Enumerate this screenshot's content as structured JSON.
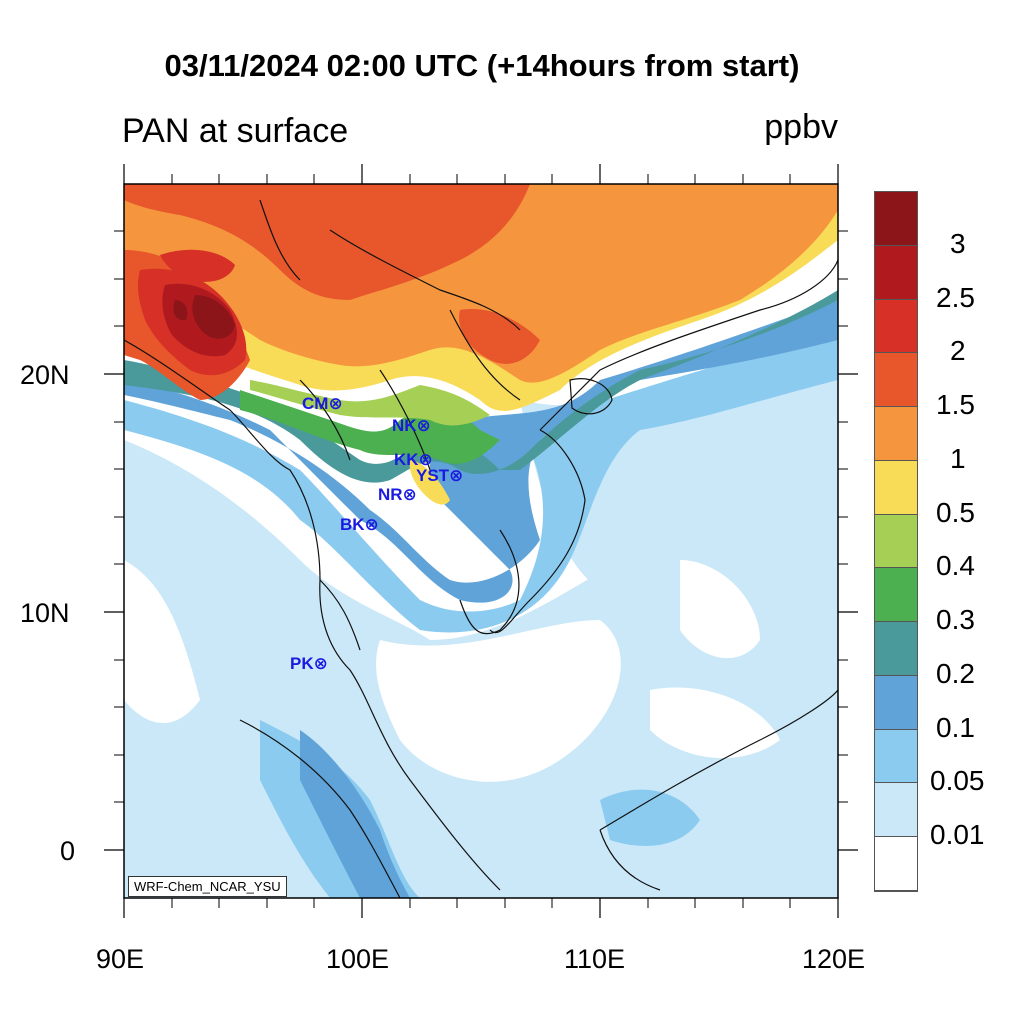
{
  "title": "03/11/2024 02:00 UTC (+14hours from start)",
  "subtitle": "PAN at surface",
  "units": "ppbv",
  "credit": "WRF-Chem_NCAR_YSU",
  "axes": {
    "x_labels": [
      "90E",
      "100E",
      "110E",
      "120E"
    ],
    "y_labels": [
      "20N",
      "10N",
      "0"
    ]
  },
  "colorbar": {
    "levels": [
      "0.01",
      "0.05",
      "0.1",
      "0.2",
      "0.3",
      "0.4",
      "0.5",
      "1",
      "1.5",
      "2",
      "2.5",
      "3"
    ],
    "colors": [
      "#ffffff",
      "#cbe8f8",
      "#8ccbf0",
      "#5fa3d8",
      "#4a9a9c",
      "#4caf50",
      "#a6cf55",
      "#f8dc58",
      "#f5963f",
      "#e8572b",
      "#d63027",
      "#b01a1f",
      "#8b1518"
    ]
  },
  "stations": [
    {
      "name": "CM",
      "label": "CM⊗"
    },
    {
      "name": "NK",
      "label": "NK⊗"
    },
    {
      "name": "KK",
      "label": "KK⊗"
    },
    {
      "name": "YST",
      "label": "YST⊗"
    },
    {
      "name": "NR",
      "label": "NR⊗"
    },
    {
      "name": "BK",
      "label": "BK⊗"
    },
    {
      "name": "PK",
      "label": "PK⊗"
    }
  ]
}
